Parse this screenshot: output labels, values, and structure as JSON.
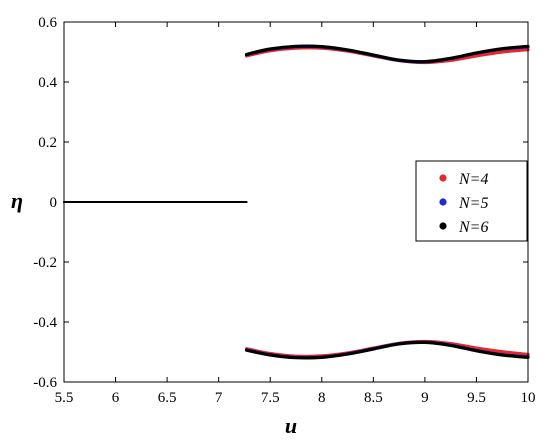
{
  "chart_data": {
    "type": "scatter",
    "xlabel": "u",
    "ylabel": "η",
    "xlim": [
      5.5,
      10
    ],
    "ylim": [
      -0.6,
      0.6
    ],
    "x_ticks": [
      5.5,
      6,
      6.5,
      7,
      7.5,
      8,
      8.5,
      9,
      9.5,
      10
    ],
    "x_tick_labels": [
      "5.5",
      "6",
      "6.5",
      "7",
      "7.5",
      "8",
      "8.5",
      "9",
      "9.5",
      "10"
    ],
    "y_ticks": [
      -0.6,
      -0.4,
      -0.2,
      0,
      0.2,
      0.4,
      0.6
    ],
    "y_tick_labels": [
      "-0.6",
      "-0.4",
      "-0.2",
      "0",
      "0.2",
      "0.4",
      "0.6"
    ],
    "grid": false,
    "legend_position": "right",
    "series": [
      {
        "name": "N=4",
        "color": "#e8262b",
        "zero_branch": {
          "x": [
            5.5,
            7.27
          ],
          "y": [
            0,
            0
          ]
        },
        "upper_branch": {
          "x": [
            7.27,
            7.5,
            7.75,
            8.0,
            8.25,
            8.5,
            8.75,
            9.0,
            9.25,
            9.5,
            9.75,
            10.0
          ],
          "y": [
            0.487,
            0.504,
            0.513,
            0.513,
            0.503,
            0.487,
            0.471,
            0.465,
            0.472,
            0.487,
            0.5,
            0.508
          ]
        },
        "lower_branch": {
          "x": [
            7.27,
            7.5,
            7.75,
            8.0,
            8.25,
            8.5,
            8.75,
            9.0,
            9.25,
            9.5,
            9.75,
            10.0
          ],
          "y": [
            -0.489,
            -0.505,
            -0.514,
            -0.513,
            -0.503,
            -0.487,
            -0.471,
            -0.465,
            -0.472,
            -0.487,
            -0.499,
            -0.508
          ]
        }
      },
      {
        "name": "N=5",
        "color": "#1f2ad6",
        "zero_branch": {
          "x": [
            5.5,
            7.27
          ],
          "y": [
            0,
            0
          ]
        },
        "upper_branch": {
          "x": [
            7.27,
            7.5,
            7.75,
            8.0,
            8.25,
            8.5,
            8.75,
            9.0,
            9.25,
            9.5,
            9.75,
            10.0
          ],
          "y": [
            0.491,
            0.509,
            0.518,
            0.517,
            0.506,
            0.489,
            0.472,
            0.467,
            0.478,
            0.496,
            0.51,
            0.517
          ]
        },
        "lower_branch": {
          "x": [
            7.27,
            7.5,
            7.75,
            8.0,
            8.25,
            8.5,
            8.75,
            9.0,
            9.25,
            9.5,
            9.75,
            10.0
          ],
          "y": [
            -0.493,
            -0.509,
            -0.518,
            -0.517,
            -0.506,
            -0.489,
            -0.472,
            -0.467,
            -0.477,
            -0.495,
            -0.509,
            -0.516
          ]
        }
      },
      {
        "name": "N=6",
        "color": "#000000",
        "zero_branch": {
          "x": [
            5.5,
            7.27
          ],
          "y": [
            0,
            0
          ]
        },
        "upper_branch": {
          "x": [
            7.27,
            7.5,
            7.75,
            8.0,
            8.25,
            8.5,
            8.75,
            9.0,
            9.25,
            9.5,
            9.75,
            10.0
          ],
          "y": [
            0.492,
            0.51,
            0.519,
            0.518,
            0.507,
            0.49,
            0.473,
            0.468,
            0.479,
            0.497,
            0.511,
            0.519
          ]
        },
        "lower_branch": {
          "x": [
            7.27,
            7.5,
            7.75,
            8.0,
            8.25,
            8.5,
            8.75,
            9.0,
            9.25,
            9.5,
            9.75,
            10.0
          ],
          "y": [
            -0.494,
            -0.51,
            -0.519,
            -0.518,
            -0.507,
            -0.49,
            -0.473,
            -0.468,
            -0.478,
            -0.496,
            -0.51,
            -0.518
          ]
        }
      }
    ]
  }
}
